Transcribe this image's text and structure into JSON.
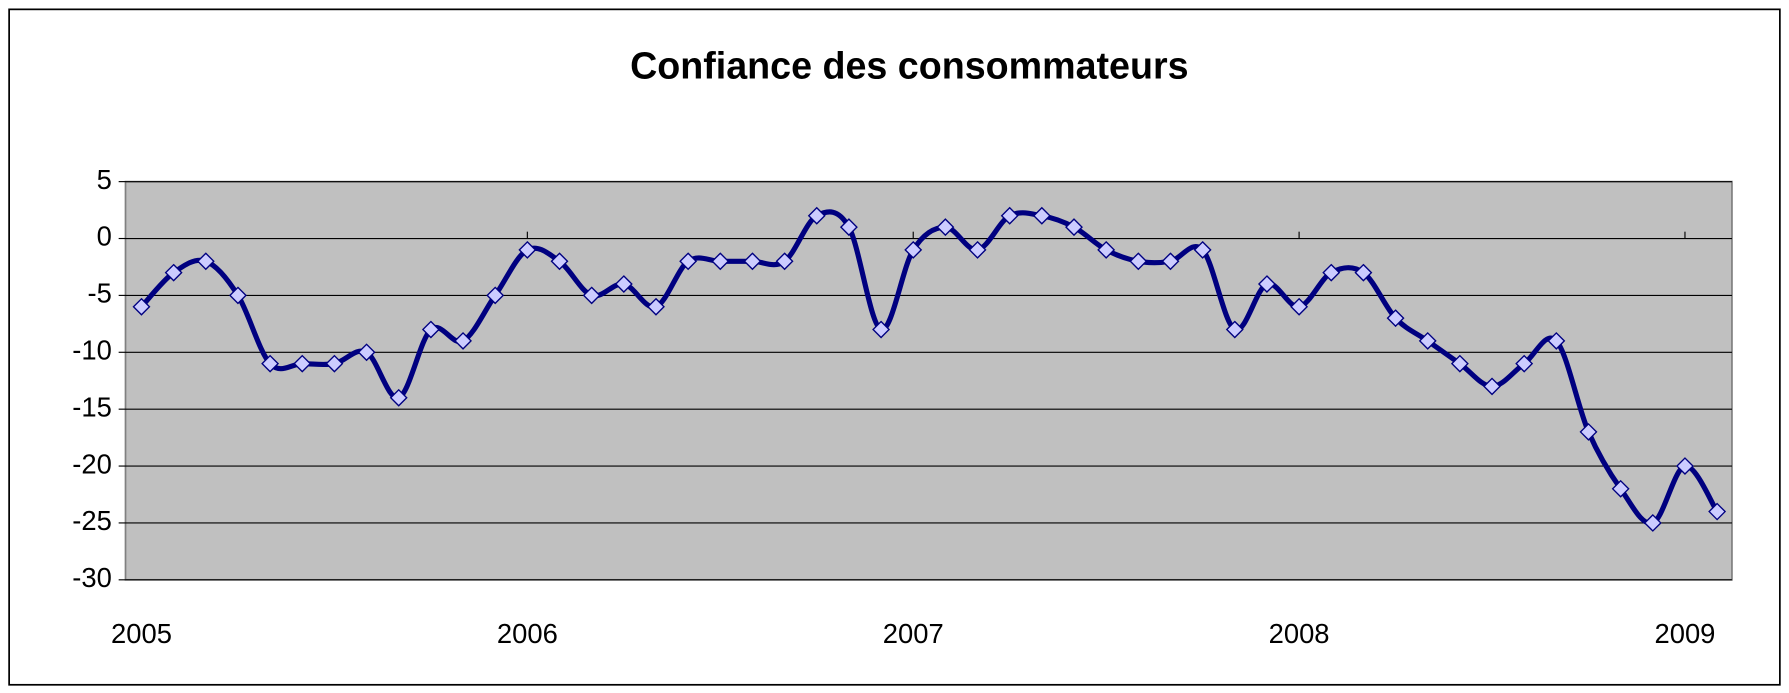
{
  "chart_data": {
    "type": "line",
    "title": "Confiance des consommateurs",
    "categories": [
      "2005",
      null,
      null,
      null,
      null,
      null,
      null,
      null,
      null,
      null,
      null,
      null,
      "2006",
      null,
      null,
      null,
      null,
      null,
      null,
      null,
      null,
      null,
      null,
      null,
      "2007",
      null,
      null,
      null,
      null,
      null,
      null,
      null,
      null,
      null,
      null,
      null,
      "2008",
      null,
      null,
      null,
      null,
      null,
      null,
      null,
      null,
      null,
      null,
      null,
      "2009",
      null
    ],
    "series": [
      {
        "name": "Confiance des consommateurs",
        "color": "#000080",
        "values": [
          -6,
          -3,
          -2,
          -5,
          -11,
          -11,
          -11,
          -10,
          -14,
          -8,
          -9,
          -5,
          -1,
          -2,
          -5,
          -4,
          -6,
          -2,
          -2,
          -2,
          -2,
          2,
          1,
          -8,
          -1,
          1,
          -1,
          2,
          2,
          1,
          -1,
          -2,
          -2,
          -1,
          -8,
          -4,
          -6,
          -3,
          -3,
          -7,
          -9,
          -11,
          -13,
          -11,
          -9,
          -17,
          -22,
          -25,
          -20,
          -24
        ]
      }
    ],
    "ylim": [
      -30,
      5
    ],
    "yticks": [
      5,
      0,
      -5,
      -10,
      -15,
      -20,
      -25,
      -30
    ],
    "grid": true,
    "legend": false
  }
}
